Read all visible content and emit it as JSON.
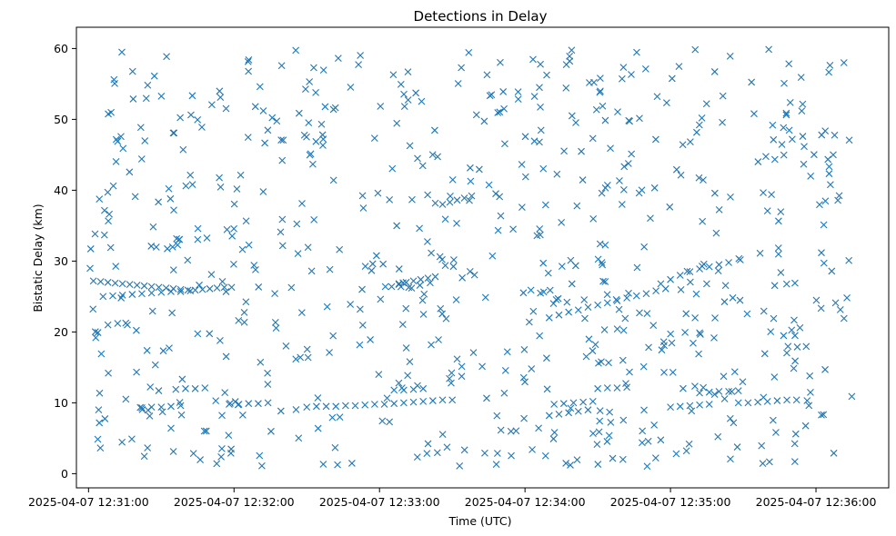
{
  "chart_data": {
    "type": "scatter",
    "title": "Detections in Delay",
    "xlabel": "Time (UTC)",
    "ylabel": "Bistatic Delay (km)",
    "marker": "x",
    "color": "#1f77b4",
    "grid": false,
    "xlim": [
      "2025-04-07 12:30:55",
      "2025-04-07 12:36:30"
    ],
    "ylim": [
      -2,
      63
    ],
    "x_tick_labels": [
      "2025-04-07 12:31:00",
      "2025-04-07 12:32:00",
      "2025-04-07 12:33:00",
      "2025-04-07 12:34:00",
      "2025-04-07 12:35:00",
      "2025-04-07 12:36:00"
    ],
    "y_tick_labels": [
      "0",
      "10",
      "20",
      "30",
      "40",
      "50",
      "60"
    ],
    "x_ticks": [
      "2025-04-07 12:31:00",
      "2025-04-07 12:32:00",
      "2025-04-07 12:33:00",
      "2025-04-07 12:34:00",
      "2025-04-07 12:35:00",
      "2025-04-07 12:36:00"
    ],
    "y_ticks": [
      0,
      10,
      20,
      30,
      40,
      50,
      60
    ],
    "points_note": "Dense detection cloud; sampled points grouped by visible tracks plus background clutter",
    "x_is_time": true,
    "series": [
      {
        "track_points": [
          [
            "12:31:02",
            27.2
          ],
          [
            "12:31:05",
            27.1
          ],
          [
            "12:31:08",
            27.0
          ],
          [
            "12:31:11",
            26.9
          ],
          [
            "12:31:14",
            26.8
          ],
          [
            "12:31:17",
            26.7
          ],
          [
            "12:31:20",
            26.6
          ],
          [
            "12:31:23",
            26.5
          ],
          [
            "12:31:26",
            26.4
          ],
          [
            "12:31:29",
            26.3
          ],
          [
            "12:31:32",
            26.2
          ],
          [
            "12:31:35",
            26.1
          ],
          [
            "12:31:38",
            26.0
          ],
          [
            "12:31:41",
            25.9
          ],
          [
            "12:31:44",
            25.9
          ],
          [
            "12:31:47",
            26.0
          ],
          [
            "12:31:50",
            26.1
          ],
          [
            "12:31:53",
            26.2
          ],
          [
            "12:31:56",
            26.3
          ],
          [
            "12:31:59",
            26.3
          ],
          [
            "12:31:06",
            25.0
          ],
          [
            "12:31:10",
            25.1
          ],
          [
            "12:31:14",
            25.2
          ],
          [
            "12:31:18",
            25.3
          ],
          [
            "12:31:22",
            25.4
          ],
          [
            "12:31:26",
            25.5
          ],
          [
            "12:31:30",
            25.6
          ],
          [
            "12:31:34",
            25.7
          ],
          [
            "12:31:38",
            25.7
          ],
          [
            "12:31:42",
            25.8
          ],
          [
            "12:31:08",
            21.0
          ],
          [
            "12:31:12",
            21.2
          ],
          [
            "12:31:16",
            21.0
          ],
          [
            "12:31:22",
            9.3
          ],
          [
            "12:31:26",
            9.4
          ],
          [
            "12:31:30",
            9.4
          ],
          [
            "12:31:34",
            9.5
          ],
          [
            "12:31:38",
            9.6
          ],
          [
            "12:31:36",
            11.9
          ],
          [
            "12:31:40",
            12.0
          ],
          [
            "12:31:44",
            12.0
          ],
          [
            "12:31:48",
            12.1
          ],
          [
            "12:31:58",
            9.8
          ],
          [
            "12:32:02",
            9.8
          ],
          [
            "12:32:06",
            9.9
          ],
          [
            "12:32:10",
            9.9
          ],
          [
            "12:32:14",
            10.0
          ],
          [
            "12:32:30",
            9.4
          ],
          [
            "12:32:34",
            9.5
          ],
          [
            "12:32:38",
            9.5
          ],
          [
            "12:32:42",
            9.5
          ],
          [
            "12:32:46",
            9.6
          ],
          [
            "12:32:50",
            9.6
          ],
          [
            "12:32:54",
            9.7
          ],
          [
            "12:32:58",
            9.8
          ],
          [
            "12:33:02",
            9.8
          ],
          [
            "12:33:06",
            9.9
          ],
          [
            "12:33:10",
            10.0
          ],
          [
            "12:33:14",
            10.1
          ],
          [
            "12:33:18",
            10.2
          ],
          [
            "12:33:22",
            10.3
          ],
          [
            "12:33:26",
            10.4
          ],
          [
            "12:33:30",
            10.4
          ],
          [
            "12:33:06",
            11.8
          ],
          [
            "12:33:10",
            11.8
          ],
          [
            "12:33:14",
            11.9
          ],
          [
            "12:33:18",
            12.0
          ],
          [
            "12:33:05",
            26.4
          ],
          [
            "12:33:08",
            26.7
          ],
          [
            "12:33:11",
            27.0
          ],
          [
            "12:33:14",
            27.2
          ],
          [
            "12:33:17",
            27.4
          ],
          [
            "12:33:20",
            27.6
          ],
          [
            "12:33:23",
            27.8
          ],
          [
            "12:33:26",
            38.0
          ],
          [
            "12:33:29",
            38.3
          ],
          [
            "12:33:32",
            38.6
          ],
          [
            "12:33:35",
            38.9
          ],
          [
            "12:33:38",
            39.2
          ],
          [
            "12:34:10",
            22.0
          ],
          [
            "12:34:14",
            22.4
          ],
          [
            "12:34:18",
            22.8
          ],
          [
            "12:34:22",
            23.1
          ],
          [
            "12:34:26",
            23.5
          ],
          [
            "12:34:30",
            23.8
          ],
          [
            "12:34:34",
            24.1
          ],
          [
            "12:34:38",
            24.4
          ],
          [
            "12:34:42",
            24.8
          ],
          [
            "12:34:46",
            25.1
          ],
          [
            "12:34:50",
            25.4
          ],
          [
            "12:34:54",
            25.8
          ],
          [
            "12:34:58",
            26.1
          ],
          [
            "12:34:10",
            8.2
          ],
          [
            "12:34:14",
            8.4
          ],
          [
            "12:34:18",
            8.6
          ],
          [
            "12:34:22",
            8.8
          ],
          [
            "12:34:26",
            9.0
          ],
          [
            "12:34:12",
            9.8
          ],
          [
            "12:34:16",
            9.9
          ],
          [
            "12:34:20",
            10.0
          ],
          [
            "12:34:24",
            10.1
          ],
          [
            "12:34:28",
            10.2
          ],
          [
            "12:34:30",
            12.0
          ],
          [
            "12:34:34",
            12.1
          ],
          [
            "12:34:38",
            12.1
          ],
          [
            "12:34:42",
            12.2
          ],
          [
            "12:34:56",
            26.8
          ],
          [
            "12:35:00",
            27.4
          ],
          [
            "12:35:04",
            28.0
          ],
          [
            "12:35:08",
            28.5
          ],
          [
            "12:35:12",
            28.9
          ],
          [
            "12:35:16",
            29.2
          ],
          [
            "12:35:20",
            29.5
          ],
          [
            "12:35:24",
            29.8
          ],
          [
            "12:35:00",
            9.4
          ],
          [
            "12:35:04",
            9.5
          ],
          [
            "12:35:08",
            9.6
          ],
          [
            "12:35:12",
            9.7
          ],
          [
            "12:35:16",
            9.8
          ],
          [
            "12:35:12",
            11.4
          ],
          [
            "12:35:16",
            11.5
          ],
          [
            "12:35:20",
            11.6
          ],
          [
            "12:35:24",
            11.6
          ],
          [
            "12:35:28",
            11.7
          ],
          [
            "12:35:28",
            10.0
          ],
          [
            "12:35:32",
            10.0
          ],
          [
            "12:35:36",
            10.1
          ],
          [
            "12:35:40",
            10.2
          ],
          [
            "12:35:44",
            10.3
          ],
          [
            "12:35:48",
            10.4
          ],
          [
            "12:35:52",
            10.4
          ]
        ]
      }
    ]
  }
}
